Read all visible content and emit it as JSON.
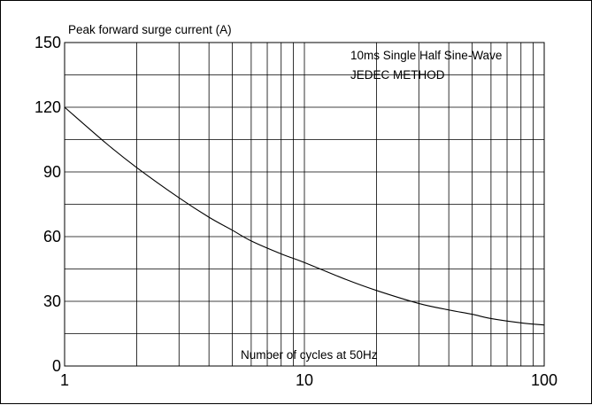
{
  "chart_data": {
    "type": "line",
    "ylabel": "Peak forward surge current (A)",
    "xlabel": "Number of cycles at 50Hz",
    "annotations": [
      "10ms Single Half Sine-Wave",
      "JEDEC METHOD"
    ],
    "x_scale": "log",
    "xlim": [
      1,
      100
    ],
    "ylim": [
      0,
      150
    ],
    "x_ticks": [
      "1",
      "10",
      "100"
    ],
    "y_ticks": [
      "0",
      "30",
      "60",
      "90",
      "120",
      "150"
    ],
    "grid": true,
    "series": [
      {
        "x": [
          1,
          1.5,
          2,
          3,
          4,
          5,
          6,
          8,
          10,
          15,
          20,
          30,
          40,
          50,
          60,
          80,
          100
        ],
        "y": [
          120,
          103,
          92,
          78,
          69,
          63,
          58,
          52,
          48,
          40,
          35,
          29,
          26,
          24,
          22,
          20,
          19
        ]
      }
    ]
  }
}
